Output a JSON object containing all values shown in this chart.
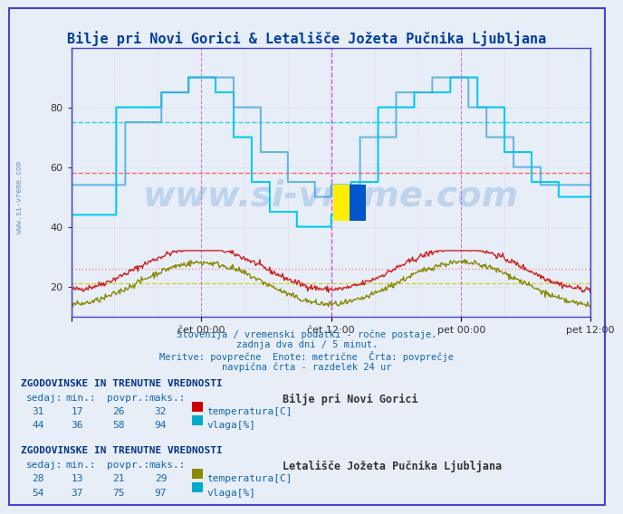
{
  "title": "Bilje pri Novi Gorici & Letališče Jožeta Pučnika Ljubljana",
  "title_color": "#003f9e",
  "bg_color": "#e8eef8",
  "plot_bg_color": "#e8eef8",
  "xlabel_ticks": [
    "čet 00:00",
    "čet 12:00",
    "pet 00:00",
    "pet 12:00"
  ],
  "ylim": [
    10,
    100
  ],
  "yticks": [
    20,
    40,
    60,
    80
  ],
  "subtitle_lines": [
    "Slovenija / vremenski podatki - ročne postaje.",
    "zadnja dva dni / 5 minut.",
    "Meritve: povprečne  Enote: metrične  Črta: povprečje",
    "navpična črta - razdelek 24 ur"
  ],
  "table1_title": "ZGODOVINSKE IN TRENUTNE VREDNOSTI",
  "table1_station": "Bilje pri Novi Gorici",
  "table1_headers": [
    "sedaj:",
    "min.:",
    "povpr.:",
    "maks.:"
  ],
  "table1_row1": [
    31,
    17,
    26,
    32
  ],
  "table1_row2": [
    44,
    36,
    58,
    94
  ],
  "table1_color1": "#cc0000",
  "table1_color2": "#00aacc",
  "table1_label1": "temperatura[C]",
  "table1_label2": "vlaga[%]",
  "table2_title": "ZGODOVINSKE IN TRENUTNE VREDNOSTI",
  "table2_station": "Letališče Jožeta Pučnika Ljubljana",
  "table2_headers": [
    "sedaj:",
    "min.:",
    "povpr.:",
    "maks.:"
  ],
  "table2_row1": [
    28,
    13,
    21,
    29
  ],
  "table2_row2": [
    54,
    37,
    75,
    97
  ],
  "table2_color1": "#8b8b00",
  "table2_color2": "#00aacc",
  "table2_label1": "temperatura[C]",
  "table2_label2": "vlaga[%]",
  "grid_color": "#c0c0c0",
  "hline_dashed_cyan": 75,
  "hline_dashed_red": 58,
  "hline_dashed_yellow": 21,
  "hline_dashed_red2": 26,
  "watermark": "www.si-vreme.com",
  "watermark_color": "#4488cc",
  "left_border_color": "#4444cc",
  "top_arrow_color": "#880000"
}
